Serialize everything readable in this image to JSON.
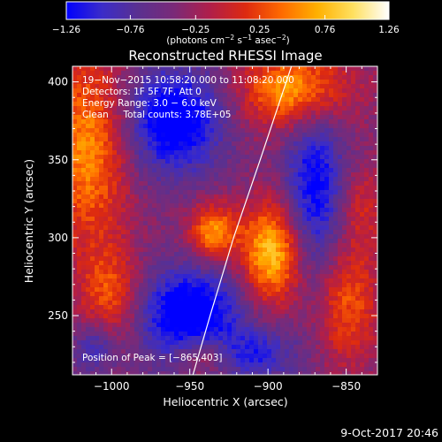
{
  "chart_data": {
    "type": "heatmap",
    "title": "Reconstructed RHESSI Image",
    "xlabel": "Heliocentric X (arcsec)",
    "ylabel": "Heliocentric Y (arcsec)",
    "xlim": [
      -1025,
      -830
    ],
    "ylim": [
      212,
      410
    ],
    "x_ticks": [
      -1000,
      -950,
      -900,
      -850
    ],
    "x_tick_labels": [
      "−1000",
      "−950",
      "−900",
      "−850"
    ],
    "y_ticks": [
      250,
      300,
      350,
      400
    ],
    "y_tick_labels": [
      "250",
      "300",
      "350",
      "400"
    ],
    "colorbar": {
      "min": -1.26,
      "max": 1.26,
      "ticks": [
        -1.26,
        -0.76,
        -0.25,
        0.25,
        0.76,
        1.26
      ],
      "tick_labels": [
        "−1.26",
        "−0.76",
        "−0.25",
        "0.25",
        "0.76",
        "1.26"
      ],
      "unit_main": "(photons cm",
      "unit_exp1": "−2",
      "unit_mid1": " s",
      "unit_exp2": "−1",
      "unit_mid2": " asec",
      "unit_exp3": "−2",
      "unit_end": ")",
      "colors": [
        "#0000ff",
        "#3b2cc8",
        "#5a3090",
        "#7a2a78",
        "#b01e4a",
        "#dd2a10",
        "#ff6a00",
        "#ffb000",
        "#ffe060",
        "#ffffff"
      ]
    },
    "annotations": [
      "19−Nov−2015 10:58:20.000 to 11:08:20.000",
      "Detectors: 1F 5F 7F, Att 0",
      "Energy Range: 3.0 − 6.0 keV",
      "Clean     Total counts: 3.78E+05"
    ],
    "peak_label": "Position of Peak = [−865,403]",
    "limb_curve": [
      [
        -948,
        212
      ],
      [
        -937,
        250
      ],
      [
        -922,
        300
      ],
      [
        -905,
        350
      ],
      [
        -885,
        410
      ]
    ],
    "sources": [
      {
        "x": -935,
        "y": 303,
        "amp": 1.0,
        "sx": 11,
        "sy": 13
      },
      {
        "x": -897,
        "y": 290,
        "amp": 1.26,
        "sx": 14,
        "sy": 23
      },
      {
        "x": -882,
        "y": 395,
        "amp": 1.15,
        "sx": 24,
        "sy": 18
      },
      {
        "x": -1015,
        "y": 357,
        "amp": 0.95,
        "sx": 18,
        "sy": 45
      },
      {
        "x": -1000,
        "y": 262,
        "amp": 0.7,
        "sx": 14,
        "sy": 22
      },
      {
        "x": -942,
        "y": 225,
        "amp": 0.6,
        "sx": 12,
        "sy": 10
      },
      {
        "x": -850,
        "y": 258,
        "amp": 0.75,
        "sx": 15,
        "sy": 28
      },
      {
        "x": -840,
        "y": 320,
        "amp": 0.45,
        "sx": 10,
        "sy": 20
      },
      {
        "x": -960,
        "y": 375,
        "amp": -1.1,
        "sx": 22,
        "sy": 24
      },
      {
        "x": -950,
        "y": 250,
        "amp": -1.15,
        "sx": 24,
        "sy": 22
      },
      {
        "x": -870,
        "y": 330,
        "amp": -0.9,
        "sx": 14,
        "sy": 45
      },
      {
        "x": -1010,
        "y": 230,
        "amp": -0.6,
        "sx": 10,
        "sy": 12
      },
      {
        "x": -905,
        "y": 225,
        "amp": -0.6,
        "sx": 18,
        "sy": 12
      }
    ],
    "baseline": -0.4
  },
  "footer": {
    "timestamp": "9-Oct-2017 20:46"
  }
}
